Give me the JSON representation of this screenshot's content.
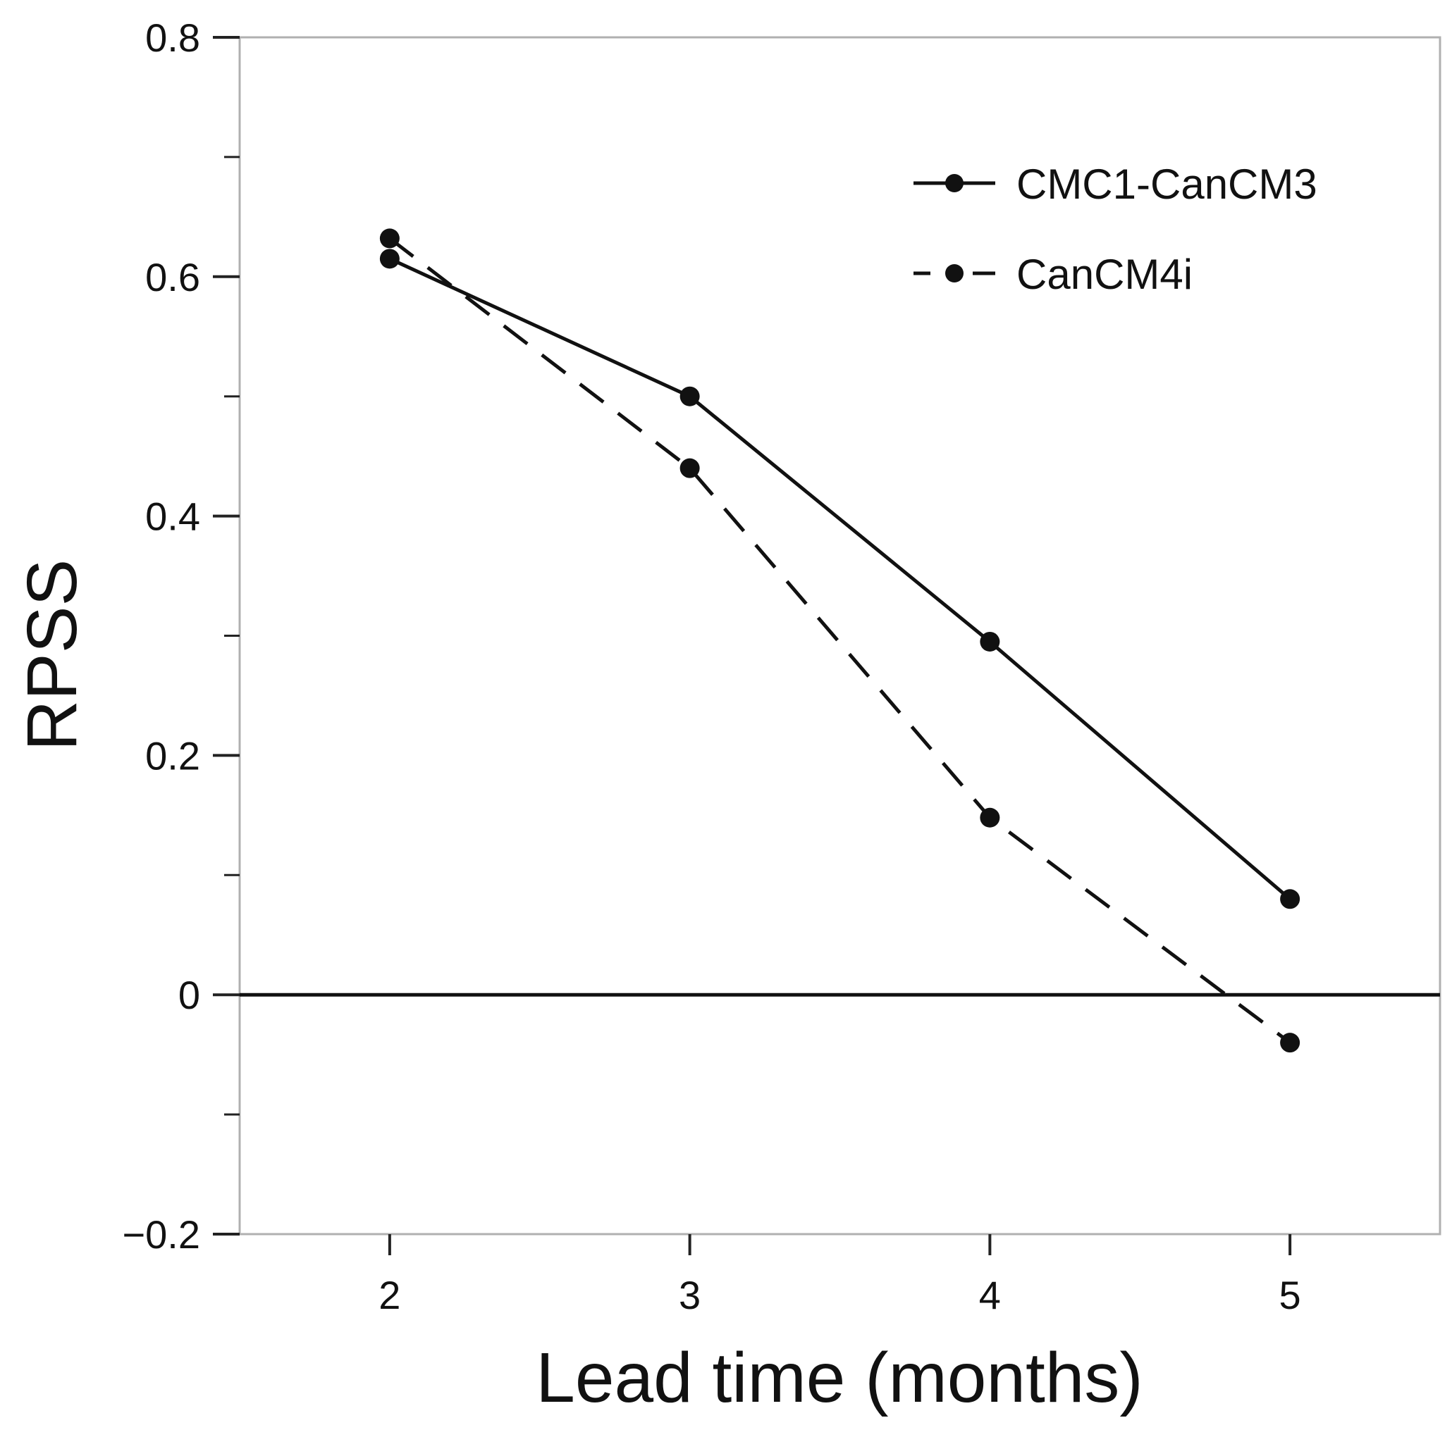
{
  "chart_data": {
    "type": "line",
    "title": "",
    "xlabel": "Lead time (months)",
    "ylabel": "RPSS",
    "x": [
      2,
      3,
      4,
      5
    ],
    "xticks": [
      2,
      3,
      4,
      5
    ],
    "xtick_labels": [
      "2",
      "3",
      "4",
      "5"
    ],
    "xlim": [
      1.5,
      5.5
    ],
    "yticks": [
      -0.2,
      0,
      0.2,
      0.4,
      0.6,
      0.8
    ],
    "ytick_labels": [
      "−0.2",
      "0",
      "0.2",
      "0.4",
      "0.6",
      "0.8"
    ],
    "yminor_ticks": [
      -0.1,
      0.1,
      0.3,
      0.5,
      0.7
    ],
    "ylim": [
      -0.2,
      0.8
    ],
    "grid": false,
    "reference_line_y": 0,
    "legend_position": "top-right",
    "series": [
      {
        "name": "CMC1-CanCM3",
        "style": "solid",
        "marker": "circle",
        "values": [
          0.615,
          0.5,
          0.295,
          0.08
        ]
      },
      {
        "name": "CanCM4i",
        "style": "dashed",
        "marker": "circle",
        "values": [
          0.632,
          0.44,
          0.148,
          -0.04
        ]
      }
    ],
    "colors": {
      "line": "#111111",
      "frame": "#b0b0b0",
      "axis": "#222222"
    }
  }
}
